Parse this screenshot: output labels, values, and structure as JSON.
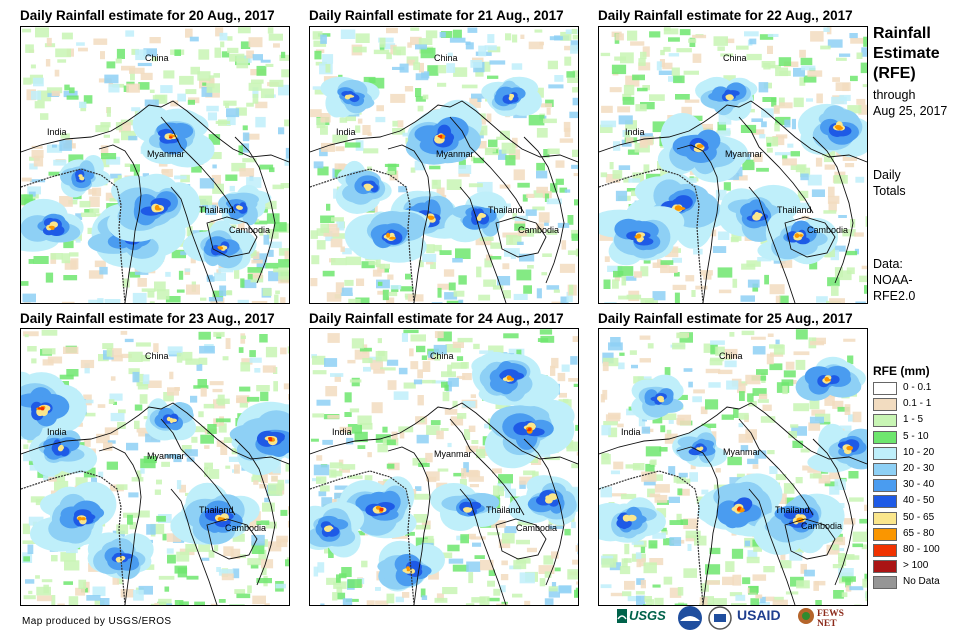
{
  "panels": [
    {
      "title": "Daily Rainfall estimate for 20 Aug., 2017",
      "labels": {
        "china": "China",
        "india": "India",
        "myanmar": "Myanmar",
        "thailand": "Thailand",
        "cambodia": "Cambodia"
      }
    },
    {
      "title": "Daily Rainfall estimate for 21 Aug., 2017",
      "labels": {
        "china": "China",
        "india": "India",
        "myanmar": "Myanmar",
        "thailand": "Thailand",
        "cambodia": "Cambodia"
      }
    },
    {
      "title": "Daily Rainfall estimate for 22 Aug., 2017",
      "labels": {
        "china": "China",
        "india": "India",
        "myanmar": "Myanmar",
        "thailand": "Thailand",
        "cambodia": "Cambodia"
      }
    },
    {
      "title": "Daily Rainfall estimate for 23 Aug., 2017",
      "labels": {
        "china": "China",
        "india": "India",
        "myanmar": "Myanmar",
        "thailand": "Thailand",
        "cambodia": "Cambodia"
      }
    },
    {
      "title": "Daily Rainfall estimate for 24 Aug., 2017",
      "labels": {
        "china": "China",
        "india": "India",
        "myanmar": "Myanmar",
        "thailand": "Thailand",
        "cambodia": "Cambodia"
      }
    },
    {
      "title": "Daily Rainfall estimate for 25 Aug., 2017",
      "labels": {
        "china": "China",
        "india": "India",
        "myanmar": "Myanmar",
        "thailand": "Thailand",
        "cambodia": "Cambodia"
      }
    }
  ],
  "sidebar": {
    "title_lines": [
      "Rainfall",
      "Estimate",
      "(RFE)"
    ],
    "through_lines": [
      "through",
      "Aug 25, 2017"
    ],
    "totals_lines": [
      "Daily",
      "Totals"
    ],
    "data_lines": [
      "Data:",
      "NOAA-",
      "RFE2.0"
    ]
  },
  "legend": {
    "title": "RFE (mm)",
    "items": [
      {
        "label": "0 - 0.1",
        "color": "#ffffff"
      },
      {
        "label": "0.1 - 1",
        "color": "#f2dcc0"
      },
      {
        "label": "1 - 5",
        "color": "#c8f5b4"
      },
      {
        "label": "5 - 10",
        "color": "#6ee66e"
      },
      {
        "label": "10 - 20",
        "color": "#bfeffa"
      },
      {
        "label": "20 - 30",
        "color": "#8ed0f5"
      },
      {
        "label": "30 - 40",
        "color": "#4a9cf0"
      },
      {
        "label": "40 - 50",
        "color": "#1e5ae6"
      },
      {
        "label": "50 - 65",
        "color": "#fae68c"
      },
      {
        "label": "65 - 80",
        "color": "#fa9600"
      },
      {
        "label": "80 - 100",
        "color": "#f03200"
      },
      {
        "label": "> 100",
        "color": "#aa1414"
      },
      {
        "label": "No Data",
        "color": "#969696"
      }
    ]
  },
  "footer": {
    "credit": "Map produced by USGS/EROS",
    "logos": [
      "USGS",
      "NOAA",
      "USDA",
      "USAID",
      "FEWS NET"
    ]
  }
}
